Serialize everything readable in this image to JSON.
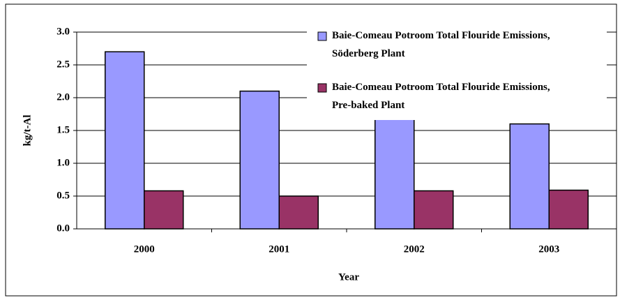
{
  "chart_data": {
    "type": "bar",
    "x_label": "Year",
    "y_label": "kg/t-Al",
    "categories": [
      "2000",
      "2001",
      "2002",
      "2003"
    ],
    "series": [
      {
        "name": "Baie-Comeau Potroom Total Flouride Emissions, Söderberg Plant",
        "color": "#9999ff",
        "values": [
          2.7,
          2.1,
          1.8,
          1.6
        ]
      },
      {
        "name": "Baie-Comeau Potroom Total Flouride Emissions, Pre-baked Plant",
        "color": "#993366",
        "values": [
          0.58,
          0.5,
          0.58,
          0.59
        ]
      }
    ],
    "ylim": [
      0,
      3
    ],
    "yticks": [
      {
        "value": 0,
        "label": "0.0"
      },
      {
        "value": 0.5,
        "label": "0.5"
      },
      {
        "value": 1,
        "label": "1.0"
      },
      {
        "value": 1.5,
        "label": "1.5"
      },
      {
        "value": 2,
        "label": "2.0"
      },
      {
        "value": 2.5,
        "label": "2.5"
      },
      {
        "value": 3,
        "label": "3.0"
      }
    ],
    "grid": true
  }
}
